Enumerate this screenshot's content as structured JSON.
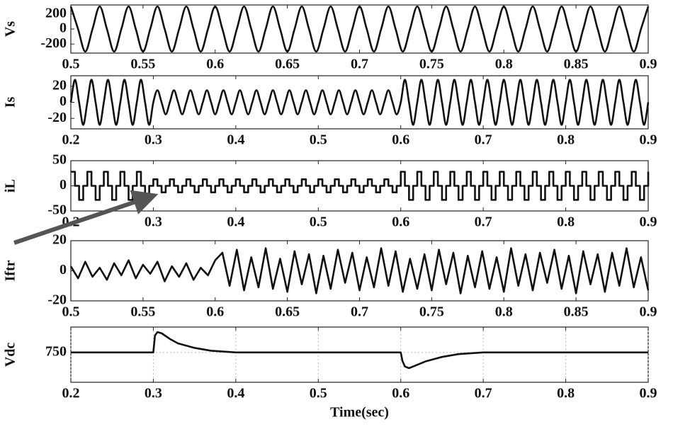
{
  "chart_data": [
    {
      "type": "line",
      "ylabel": "Vs",
      "interpolation": "spline",
      "color": "#111111",
      "x": [
        0.5,
        0.505,
        0.51,
        0.515,
        0.52,
        0.525,
        0.53,
        0.535,
        0.54,
        0.545,
        0.55,
        0.555,
        0.56,
        0.565,
        0.57,
        0.575,
        0.58,
        0.585,
        0.59,
        0.595,
        0.6,
        0.605,
        0.61,
        0.615,
        0.62,
        0.625,
        0.63,
        0.635,
        0.64,
        0.645,
        0.65,
        0.655,
        0.66,
        0.665,
        0.67,
        0.675,
        0.68,
        0.685,
        0.69,
        0.695,
        0.7,
        0.705,
        0.71,
        0.715,
        0.72,
        0.725,
        0.73,
        0.735,
        0.74,
        0.745,
        0.75,
        0.755,
        0.76,
        0.765,
        0.77,
        0.775,
        0.78,
        0.785,
        0.79,
        0.795,
        0.8,
        0.805,
        0.81,
        0.815,
        0.82,
        0.825,
        0.83,
        0.835,
        0.84,
        0.845,
        0.85,
        0.855,
        0.86,
        0.865,
        0.87,
        0.875,
        0.88,
        0.885,
        0.89,
        0.895,
        0.9
      ],
      "values": [
        300,
        0,
        -300,
        0,
        300,
        0,
        -300,
        0,
        300,
        0,
        -300,
        0,
        300,
        0,
        -300,
        0,
        300,
        0,
        -300,
        0,
        300,
        0,
        -300,
        0,
        300,
        0,
        -300,
        0,
        300,
        0,
        -300,
        0,
        300,
        0,
        -300,
        0,
        300,
        0,
        -300,
        0,
        300,
        0,
        -300,
        0,
        300,
        0,
        -300,
        0,
        300,
        0,
        -300,
        0,
        300,
        0,
        -300,
        0,
        300,
        0,
        -300,
        0,
        300,
        0,
        -300,
        0,
        300,
        0,
        -300,
        0,
        300,
        0,
        -300,
        0,
        300,
        0,
        -300,
        0,
        300,
        0,
        -300,
        0,
        300
      ],
      "xlim": [
        0.5,
        0.9
      ],
      "ylim": [
        -320,
        320
      ],
      "xticks": [
        0.5,
        0.55,
        0.6,
        0.65,
        0.7,
        0.75,
        0.8,
        0.85,
        0.9
      ],
      "yticks": [
        200,
        0,
        -200
      ]
    },
    {
      "type": "line",
      "ylabel": "Is",
      "interpolation": "spline",
      "color": "#111111",
      "x": [
        0.2,
        0.205,
        0.21,
        0.215,
        0.22,
        0.225,
        0.23,
        0.235,
        0.24,
        0.245,
        0.25,
        0.255,
        0.26,
        0.265,
        0.27,
        0.275,
        0.28,
        0.285,
        0.29,
        0.295,
        0.3,
        0.305,
        0.31,
        0.315,
        0.32,
        0.325,
        0.33,
        0.335,
        0.34,
        0.345,
        0.35,
        0.355,
        0.36,
        0.365,
        0.37,
        0.375,
        0.38,
        0.385,
        0.39,
        0.395,
        0.4,
        0.405,
        0.41,
        0.415,
        0.42,
        0.425,
        0.43,
        0.435,
        0.44,
        0.445,
        0.45,
        0.455,
        0.46,
        0.465,
        0.47,
        0.475,
        0.48,
        0.485,
        0.49,
        0.495,
        0.5,
        0.505,
        0.51,
        0.515,
        0.52,
        0.525,
        0.53,
        0.535,
        0.54,
        0.545,
        0.55,
        0.555,
        0.56,
        0.565,
        0.57,
        0.575,
        0.58,
        0.585,
        0.59,
        0.595,
        0.6,
        0.605,
        0.61,
        0.615,
        0.62,
        0.625,
        0.63,
        0.635,
        0.64,
        0.645,
        0.65,
        0.655,
        0.66,
        0.665,
        0.67,
        0.675,
        0.68,
        0.685,
        0.69,
        0.695,
        0.7,
        0.705,
        0.71,
        0.715,
        0.72,
        0.725,
        0.73,
        0.735,
        0.74,
        0.745,
        0.75,
        0.755,
        0.76,
        0.765,
        0.77,
        0.775,
        0.78,
        0.785,
        0.79,
        0.795,
        0.8,
        0.805,
        0.81,
        0.815,
        0.82,
        0.825,
        0.83,
        0.835,
        0.84,
        0.845,
        0.85,
        0.855,
        0.86,
        0.865,
        0.87,
        0.875,
        0.88,
        0.885,
        0.89,
        0.895,
        0.9
      ],
      "values": [
        0,
        28,
        0,
        -28,
        0,
        28,
        0,
        -28,
        0,
        28,
        0,
        -28,
        0,
        28,
        0,
        -28,
        0,
        28,
        0,
        -28,
        0,
        15,
        0,
        -15,
        0,
        15,
        0,
        -15,
        0,
        15,
        0,
        -15,
        0,
        15,
        0,
        -15,
        0,
        15,
        0,
        -15,
        0,
        15,
        0,
        -15,
        0,
        15,
        0,
        -15,
        0,
        15,
        0,
        -15,
        0,
        15,
        0,
        -15,
        0,
        15,
        0,
        -15,
        0,
        15,
        0,
        -15,
        0,
        15,
        0,
        -15,
        0,
        15,
        0,
        -15,
        0,
        15,
        0,
        -15,
        0,
        15,
        0,
        -15,
        0,
        28,
        0,
        -28,
        0,
        28,
        0,
        -28,
        0,
        28,
        0,
        -28,
        0,
        28,
        0,
        -28,
        0,
        28,
        0,
        -28,
        0,
        28,
        0,
        -28,
        0,
        28,
        0,
        -28,
        0,
        28,
        0,
        -28,
        0,
        28,
        0,
        -28,
        0,
        28,
        0,
        -28,
        0,
        28,
        0,
        -28,
        0,
        28,
        0,
        -28,
        0,
        28,
        0,
        -28,
        0,
        28,
        0,
        -28,
        0,
        28,
        0,
        -28,
        0
      ],
      "xlim": [
        0.2,
        0.9
      ],
      "ylim": [
        -33,
        33
      ],
      "xticks": [
        0.2,
        0.3,
        0.4,
        0.5,
        0.6,
        0.7,
        0.8,
        0.9
      ],
      "yticks": [
        20,
        0,
        -20
      ]
    },
    {
      "type": "line",
      "ylabel": "iL",
      "interpolation": "step",
      "color": "#111111",
      "x": [
        0.2,
        0.205,
        0.21,
        0.215,
        0.22,
        0.225,
        0.23,
        0.235,
        0.24,
        0.245,
        0.25,
        0.255,
        0.26,
        0.265,
        0.27,
        0.275,
        0.28,
        0.285,
        0.29,
        0.295,
        0.3,
        0.305,
        0.31,
        0.315,
        0.32,
        0.325,
        0.33,
        0.335,
        0.34,
        0.345,
        0.35,
        0.355,
        0.36,
        0.365,
        0.37,
        0.375,
        0.38,
        0.385,
        0.39,
        0.395,
        0.4,
        0.405,
        0.41,
        0.415,
        0.42,
        0.425,
        0.43,
        0.435,
        0.44,
        0.445,
        0.45,
        0.455,
        0.46,
        0.465,
        0.47,
        0.475,
        0.48,
        0.485,
        0.49,
        0.495,
        0.5,
        0.505,
        0.51,
        0.515,
        0.52,
        0.525,
        0.53,
        0.535,
        0.54,
        0.545,
        0.55,
        0.555,
        0.56,
        0.565,
        0.57,
        0.575,
        0.58,
        0.585,
        0.59,
        0.595,
        0.6,
        0.605,
        0.61,
        0.615,
        0.62,
        0.625,
        0.63,
        0.635,
        0.64,
        0.645,
        0.65,
        0.655,
        0.66,
        0.665,
        0.67,
        0.675,
        0.68,
        0.685,
        0.69,
        0.695,
        0.7,
        0.705,
        0.71,
        0.715,
        0.72,
        0.725,
        0.73,
        0.735,
        0.74,
        0.745,
        0.75,
        0.755,
        0.76,
        0.765,
        0.77,
        0.775,
        0.78,
        0.785,
        0.79,
        0.795,
        0.8,
        0.805,
        0.81,
        0.815,
        0.82,
        0.825,
        0.83,
        0.835,
        0.84,
        0.845,
        0.85,
        0.855,
        0.86,
        0.865,
        0.87,
        0.875,
        0.88,
        0.885,
        0.89,
        0.895,
        0.9
      ],
      "values": [
        28,
        0,
        -28,
        0,
        28,
        0,
        -28,
        0,
        28,
        0,
        -28,
        0,
        28,
        0,
        -28,
        0,
        28,
        0,
        -28,
        0,
        13,
        0,
        -13,
        0,
        13,
        0,
        -13,
        0,
        13,
        0,
        -13,
        0,
        13,
        0,
        -13,
        0,
        13,
        0,
        -13,
        0,
        13,
        0,
        -13,
        0,
        13,
        0,
        -13,
        0,
        13,
        0,
        -13,
        0,
        13,
        0,
        -13,
        0,
        13,
        0,
        -13,
        0,
        13,
        0,
        -13,
        0,
        13,
        0,
        -13,
        0,
        13,
        0,
        -13,
        0,
        13,
        0,
        -13,
        0,
        13,
        0,
        -13,
        0,
        28,
        0,
        -28,
        0,
        28,
        0,
        -28,
        0,
        28,
        0,
        -28,
        0,
        28,
        0,
        -28,
        0,
        28,
        0,
        -28,
        0,
        28,
        0,
        -28,
        0,
        28,
        0,
        -28,
        0,
        28,
        0,
        -28,
        0,
        28,
        0,
        -28,
        0,
        28,
        0,
        -28,
        0,
        28,
        0,
        -28,
        0,
        28,
        0,
        -28,
        0,
        28,
        0,
        -28,
        0,
        28,
        0,
        -28,
        0,
        28,
        0,
        -28,
        0,
        28
      ],
      "xlim": [
        0.2,
        0.9
      ],
      "ylim": [
        -50,
        50
      ],
      "xticks": [
        0.2,
        0.3,
        0.4,
        0.5,
        0.6,
        0.7,
        0.8,
        0.9
      ],
      "yticks": [
        50,
        0,
        -50
      ]
    },
    {
      "type": "line",
      "ylabel": "Iftr",
      "interpolation": "linear",
      "color": "#111111",
      "x": [
        0.5,
        0.505,
        0.51,
        0.515,
        0.52,
        0.525,
        0.53,
        0.535,
        0.54,
        0.545,
        0.55,
        0.555,
        0.56,
        0.565,
        0.57,
        0.575,
        0.58,
        0.585,
        0.59,
        0.595,
        0.6,
        0.605,
        0.61,
        0.615,
        0.62,
        0.625,
        0.63,
        0.635,
        0.64,
        0.645,
        0.65,
        0.655,
        0.66,
        0.665,
        0.67,
        0.675,
        0.68,
        0.685,
        0.69,
        0.695,
        0.7,
        0.705,
        0.71,
        0.715,
        0.72,
        0.725,
        0.73,
        0.735,
        0.74,
        0.745,
        0.75,
        0.755,
        0.76,
        0.765,
        0.77,
        0.775,
        0.78,
        0.785,
        0.79,
        0.795,
        0.8,
        0.805,
        0.81,
        0.815,
        0.82,
        0.825,
        0.83,
        0.835,
        0.84,
        0.845,
        0.85,
        0.855,
        0.86,
        0.865,
        0.87,
        0.875,
        0.88,
        0.885,
        0.89,
        0.895,
        0.9
      ],
      "values": [
        3,
        -5,
        6,
        -4,
        2,
        -6,
        5,
        -3,
        7,
        -5,
        4,
        -2,
        6,
        -7,
        3,
        -4,
        5,
        -6,
        2,
        -3,
        7,
        12,
        -10,
        14,
        -13,
        9,
        -11,
        15,
        -12,
        8,
        -14,
        13,
        -9,
        11,
        -15,
        10,
        -12,
        14,
        -8,
        12,
        -13,
        9,
        -11,
        15,
        -10,
        13,
        -14,
        8,
        -12,
        11,
        -13,
        14,
        -9,
        12,
        -15,
        10,
        -11,
        13,
        -12,
        9,
        -14,
        15,
        -10,
        11,
        -13,
        12,
        -8,
        14,
        -12,
        10,
        -15,
        13,
        -9,
        11,
        -14,
        12,
        -10,
        15,
        -11,
        9,
        -13
      ],
      "xlim": [
        0.5,
        0.9
      ],
      "ylim": [
        -20,
        20
      ],
      "xticks": [
        0.5,
        0.55,
        0.6,
        0.65,
        0.7,
        0.75,
        0.8,
        0.85,
        0.9
      ],
      "yticks": [
        20,
        0,
        -20
      ]
    },
    {
      "type": "line",
      "ylabel": "Vdc",
      "xlabel": "Time(sec)",
      "interpolation": "linear",
      "color": "#111111",
      "grid": true,
      "x": [
        0.2,
        0.3,
        0.302,
        0.305,
        0.31,
        0.32,
        0.33,
        0.35,
        0.37,
        0.4,
        0.45,
        0.6,
        0.602,
        0.605,
        0.61,
        0.62,
        0.63,
        0.65,
        0.67,
        0.7,
        0.9
      ],
      "values": [
        750,
        750,
        780,
        786,
        784,
        774,
        766,
        758,
        753,
        750,
        750,
        750,
        735,
        725,
        722,
        728,
        734,
        742,
        747,
        750,
        750
      ],
      "xlim": [
        0.2,
        0.9
      ],
      "ylim": [
        697,
        795
      ],
      "xticks": [
        0.2,
        0.3,
        0.4,
        0.5,
        0.6,
        0.7,
        0.8,
        0.9
      ],
      "yticks": [
        750
      ]
    }
  ]
}
